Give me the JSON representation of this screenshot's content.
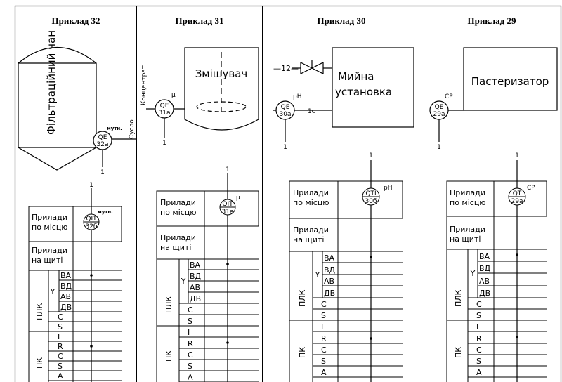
{
  "headers": [
    "Приклад 32",
    "Приклад 31",
    "Приклад 30",
    "Приклад 29"
  ],
  "equipment": {
    "tank": "Фільтраційний чан",
    "mixer": "Змішувач",
    "washer_line1": "Мийна",
    "washer_line2": "установка",
    "pasteurizer": "Пастеризатор"
  },
  "pipes": {
    "wort": "Сусло",
    "concentrate": "Концентрат",
    "line12": "—12—",
    "line1c": "1с"
  },
  "sensors": [
    {
      "top": "QE",
      "bot": "32а",
      "param": "мутн."
    },
    {
      "top": "QE",
      "bot": "31а",
      "param": "μ"
    },
    {
      "top": "QE",
      "bot": "30а",
      "param": "pH"
    },
    {
      "top": "QE",
      "bot": "29а",
      "param": "СР"
    }
  ],
  "instruments": [
    {
      "top": "QIT",
      "bot": "32б",
      "param": "мутн."
    },
    {
      "top": "QIT",
      "bot": "31а",
      "param": "μ"
    },
    {
      "top": "QTI",
      "bot": "30б",
      "param": "pH"
    },
    {
      "top": "QT",
      "bot": "29а",
      "param": "СР"
    }
  ],
  "one": "1",
  "table": {
    "local_1": "Прилади",
    "local_2": "по місцю",
    "panel_1": "Прилади",
    "panel_2": "на щиті",
    "plc": "ПЛК",
    "pc": "ПК",
    "y": "Y",
    "rows": [
      "ВА",
      "ВД",
      "АВ",
      "ДВ",
      "C",
      "S",
      "I",
      "R",
      "C",
      "S",
      "A"
    ]
  }
}
